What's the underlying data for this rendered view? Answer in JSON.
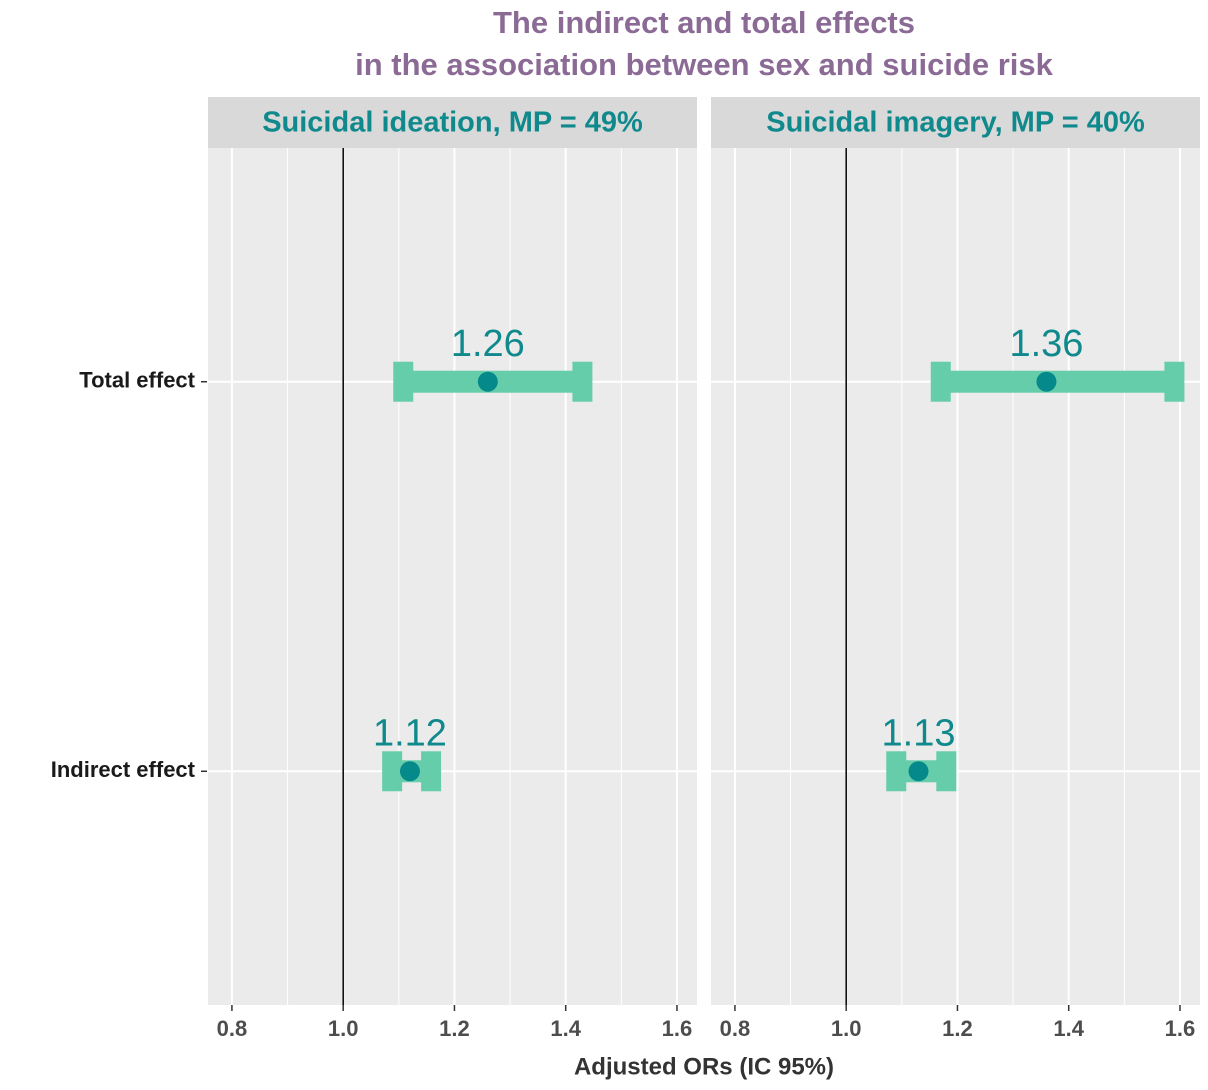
{
  "title": [
    "The indirect and total effects",
    "in the association between sex and suicide risk"
  ],
  "x_label": "Adjusted ORs (IC 95%)",
  "categories": [
    "Indirect effect",
    "Total effect"
  ],
  "chart_data": [
    {
      "type": "errorbar",
      "title": "Suicidal ideation, MP = 49%",
      "values": [
        1.12,
        1.26
      ],
      "lower": [
        1.088,
        1.108
      ],
      "upper": [
        1.158,
        1.43
      ],
      "xlim": [
        0.757,
        1.636
      ],
      "xticks": [
        0.8,
        {
          "value": 1,
          "label": "1.0"
        },
        1.2,
        1.4,
        1.6
      ],
      "minor_xticks": [
        0.9,
        1.1,
        1.3,
        1.5
      ],
      "reference_line": 1,
      "bar_color": "#66cdaa",
      "point_color": "#05898b",
      "grid": true
    },
    {
      "type": "errorbar",
      "title": "Suicidal imagery, MP = 40%",
      "values": [
        1.13,
        1.36
      ],
      "lower": [
        1.09,
        1.17
      ],
      "upper": [
        1.18,
        1.59
      ],
      "xlim": [
        0.757,
        1.636
      ],
      "xticks": [
        0.8,
        {
          "value": 1,
          "label": "1.0"
        },
        1.2,
        1.4,
        1.6
      ],
      "minor_xticks": [
        0.9,
        1.1,
        1.3,
        1.5
      ],
      "reference_line": 1,
      "bar_color": "#66cdaa",
      "point_color": "#05898b",
      "grid": true
    }
  ]
}
